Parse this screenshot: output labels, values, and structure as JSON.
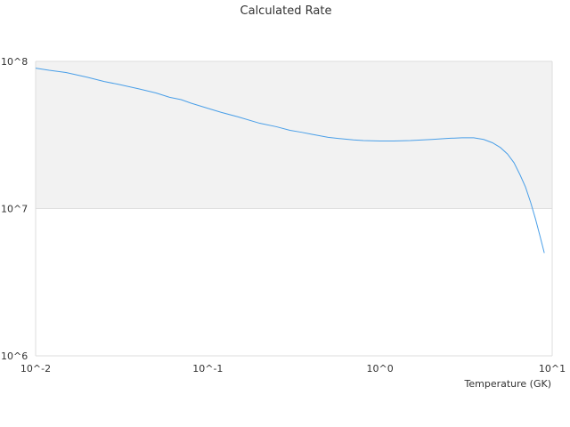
{
  "chart_data": {
    "type": "line",
    "title": "Calculated Rate",
    "xlabel": "Temperature (GK)",
    "ylabel": "",
    "x_scale": "log",
    "y_scale": "log",
    "xlim": [
      0.01,
      10
    ],
    "ylim": [
      1000000,
      100000000
    ],
    "x_tick_labels": [
      "10^-2",
      "10^-1",
      "10^0",
      "10^1"
    ],
    "y_tick_labels": [
      "10^6",
      "10^7",
      "10^8"
    ],
    "grid": true,
    "band_fill": "#f2f2f2",
    "series": [
      {
        "color": "#4a9fe8",
        "x": [
          0.01,
          0.012,
          0.015,
          0.02,
          0.025,
          0.03,
          0.04,
          0.05,
          0.06,
          0.07,
          0.08,
          0.1,
          0.12,
          0.15,
          0.2,
          0.25,
          0.3,
          0.35,
          0.4,
          0.5,
          0.6,
          0.7,
          0.8,
          1.0,
          1.2,
          1.5,
          2.0,
          2.5,
          3.0,
          3.5,
          4.0,
          4.5,
          5.0,
          5.5,
          6.0,
          6.5,
          7.0,
          7.5,
          8.0,
          8.5,
          9.0
        ],
        "y": [
          90000000,
          87000000,
          84000000,
          78000000,
          73000000,
          70000000,
          65000000,
          61000000,
          57000000,
          55000000,
          52000000,
          48000000,
          45000000,
          42000000,
          38000000,
          36000000,
          34000000,
          33000000,
          32000000,
          30500000,
          29800000,
          29300000,
          29000000,
          28800000,
          28800000,
          29000000,
          29500000,
          30000000,
          30300000,
          30300000,
          29500000,
          28000000,
          26000000,
          23500000,
          20500000,
          17000000,
          14000000,
          11000000,
          8500000,
          6500000,
          5000000
        ]
      }
    ]
  }
}
